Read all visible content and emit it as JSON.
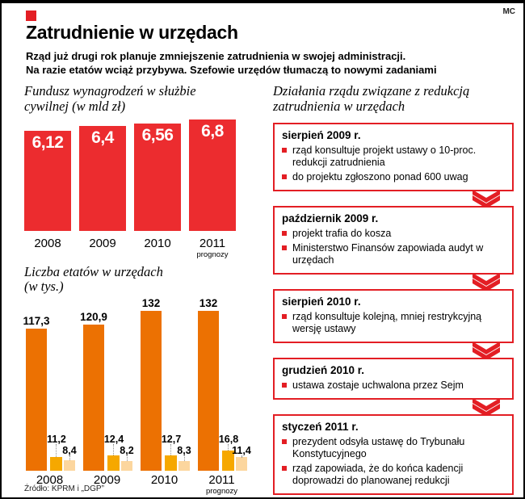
{
  "colors": {
    "accent": "#e31e24",
    "chart1_bar": "#ec2c2f",
    "chart2_dark_orange": "#ec7102",
    "chart2_orange": "#f6a800",
    "chart2_light_orange": "#fcd69e"
  },
  "header": {
    "tag": "MC",
    "title": "Zatrudnienie w urzędach",
    "subtitle_lines": [
      "Rząd już drugi rok planuje zmniejszenie zatrudnienia w swojej administracji.",
      "Na razie etatów wciąż przybywa. Szefowie urzędów tłumaczą to nowymi zadaniami"
    ]
  },
  "chart_data": [
    {
      "type": "bar",
      "title": "Fundusz wynagrodzeń w służbie cywilnej (w mld zł)",
      "categories": [
        "2008",
        "2009",
        "2010",
        "2011"
      ],
      "values": [
        6.12,
        6.4,
        6.56,
        6.8
      ],
      "value_labels": [
        "6,12",
        "6,4",
        "6,56",
        "6,8"
      ],
      "forecast_note": "prognozy",
      "bar_color": "#ec2c2f"
    },
    {
      "type": "bar",
      "title": "Liczba etatów w urzędach (w tys.)",
      "categories": [
        "2008",
        "2009",
        "2010",
        "2011"
      ],
      "series": [
        {
          "values": [
            117.3,
            120.9,
            132,
            132
          ],
          "labels": [
            "117,3",
            "120,9",
            "132",
            "132"
          ],
          "color": "#ec7102"
        },
        {
          "values": [
            11.2,
            12.4,
            12.7,
            16.8
          ],
          "labels": [
            "11,2",
            "12,4",
            "12,7",
            "16,8"
          ],
          "color": "#f6a800"
        },
        {
          "values": [
            8.4,
            8.2,
            8.3,
            11.4
          ],
          "labels": [
            "8,4",
            "8,2",
            "8,3",
            "11,4"
          ],
          "color": "#fcd69e"
        }
      ],
      "forecast_note": "prognozy"
    }
  ],
  "timeline": {
    "heading": "Działania rządu związane z redukcją zatrudnienia w urzędach",
    "boxes": [
      {
        "date": "sierpień 2009 r.",
        "items": [
          "rząd konsultuje projekt ustawy o 10-proc. redukcji zatrudnienia",
          "do projektu zgłoszono ponad 600 uwag"
        ]
      },
      {
        "date": "październik 2009 r.",
        "items": [
          "projekt trafia do kosza",
          "Ministerstwo Finansów zapowiada audyt w urzędach"
        ]
      },
      {
        "date": "sierpień 2010 r.",
        "items": [
          "rząd konsultuje kolejną, mniej restrykcyjną wersję ustawy"
        ]
      },
      {
        "date": "grudzień 2010 r.",
        "items": [
          "ustawa zostaje uchwalona przez Sejm"
        ]
      },
      {
        "date": "styczeń 2011 r.",
        "items": [
          "prezydent odsyła ustawę do Trybunału Konstytucyjnego",
          "rząd zapowiada, że do końca kadencji doprowadzi do planowanej redukcji"
        ]
      }
    ]
  },
  "footer": {
    "source": "Źródło: KPRM i „DGP”"
  }
}
